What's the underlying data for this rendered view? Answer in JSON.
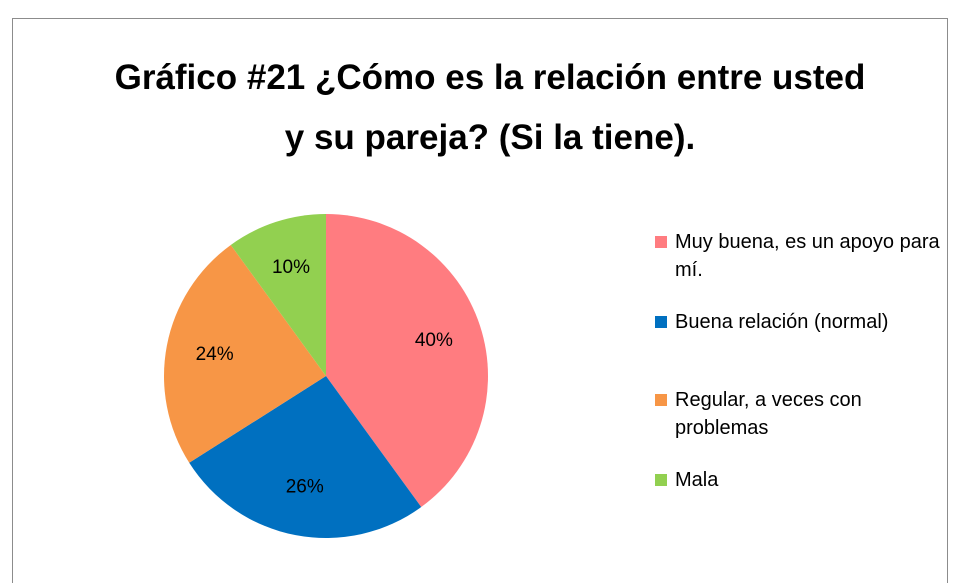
{
  "chart_data": {
    "type": "pie",
    "title": "Gráfico #21 ¿Cómo es la relación entre usted y su pareja? (Si la tiene).",
    "categories": [
      "Muy buena, es un apoyo para mí.",
      "Buena relación (normal)",
      "Regular, a veces con problemas",
      "Mala"
    ],
    "values": [
      40,
      26,
      24,
      10
    ],
    "value_labels": [
      "40%",
      "26%",
      "24%",
      "10%"
    ],
    "colors": [
      "#ff7c80",
      "#0070c0",
      "#f79646",
      "#92d050"
    ],
    "legend": "right"
  }
}
